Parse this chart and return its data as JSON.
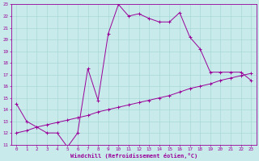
{
  "title": "",
  "xlabel": "Windchill (Refroidissement éolien,°C)",
  "ylabel": "",
  "bg_color": "#c8eaea",
  "grid_color": "#a8d8d8",
  "line_color": "#990099",
  "xlim": [
    -0.5,
    23.5
  ],
  "ylim": [
    11,
    23
  ],
  "xticks": [
    0,
    1,
    2,
    3,
    4,
    5,
    6,
    7,
    8,
    9,
    10,
    11,
    12,
    13,
    14,
    15,
    16,
    17,
    18,
    19,
    20,
    21,
    22,
    23
  ],
  "yticks": [
    11,
    12,
    13,
    14,
    15,
    16,
    17,
    18,
    19,
    20,
    21,
    22,
    23
  ],
  "line1_x": [
    0,
    1,
    2,
    3,
    4,
    5,
    6,
    7,
    8,
    9,
    10,
    11,
    12,
    13,
    14,
    15,
    16,
    17,
    18,
    19,
    20,
    21,
    22,
    23
  ],
  "line1_y": [
    14.5,
    13.0,
    12.5,
    12.0,
    12.0,
    10.8,
    12.0,
    17.5,
    14.8,
    20.5,
    23.0,
    22.0,
    22.2,
    21.8,
    21.5,
    21.5,
    22.3,
    20.2,
    19.2,
    17.2,
    17.2,
    17.2,
    17.2,
    16.5
  ],
  "line2_x": [
    0,
    1,
    2,
    3,
    4,
    5,
    6,
    7,
    8,
    9,
    10,
    11,
    12,
    13,
    14,
    15,
    16,
    17,
    18,
    19,
    20,
    21,
    22,
    23
  ],
  "line2_y": [
    12.0,
    12.2,
    12.5,
    12.7,
    12.9,
    13.1,
    13.3,
    13.5,
    13.8,
    14.0,
    14.2,
    14.4,
    14.6,
    14.8,
    15.0,
    15.2,
    15.5,
    15.8,
    16.0,
    16.2,
    16.5,
    16.7,
    16.9,
    17.1
  ],
  "tick_fontsize": 4.2,
  "xlabel_fontsize": 5.0,
  "marker_size": 2.5,
  "linewidth": 0.7
}
